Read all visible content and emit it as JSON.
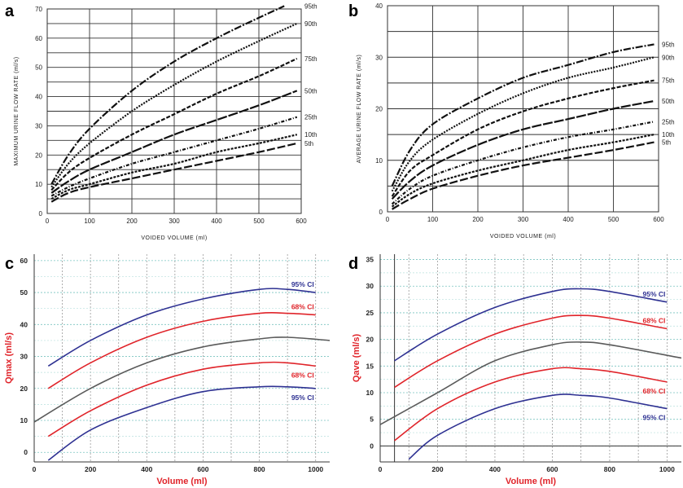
{
  "colors": {
    "blue": "#2e3192",
    "red": "#e0242a",
    "gray": "#5a5a5a",
    "dark": "#111111",
    "axis_label_red": "#e0242a"
  },
  "chart_data": [
    {
      "panel": "a",
      "type": "line",
      "xlabel": "VOIDED VOLUME (ml)",
      "ylabel": "MAXIMUM URINE FLOW RATE (ml/s)",
      "xlim": [
        0,
        600
      ],
      "ylim": [
        0,
        70
      ],
      "xticks": [
        0,
        100,
        200,
        300,
        400,
        500,
        600
      ],
      "yticks": [
        0,
        10,
        20,
        30,
        40,
        50,
        60,
        70
      ],
      "grid": true,
      "series": [
        {
          "name": "95th",
          "x": [
            10,
            50,
            100,
            200,
            300,
            400,
            500,
            560
          ],
          "y": [
            10,
            20,
            29,
            42,
            52,
            60,
            67,
            71
          ]
        },
        {
          "name": "90th",
          "x": [
            10,
            50,
            100,
            200,
            300,
            400,
            500,
            590
          ],
          "y": [
            9,
            17,
            24,
            35,
            44,
            52,
            59,
            65
          ]
        },
        {
          "name": "75th",
          "x": [
            10,
            50,
            100,
            200,
            300,
            400,
            500,
            590
          ],
          "y": [
            8,
            14,
            19,
            27,
            34,
            41,
            47,
            53
          ]
        },
        {
          "name": "50th",
          "x": [
            10,
            50,
            100,
            200,
            300,
            400,
            500,
            590
          ],
          "y": [
            7,
            11,
            15,
            21,
            27,
            32,
            37,
            42
          ]
        },
        {
          "name": "25th",
          "x": [
            10,
            50,
            100,
            200,
            300,
            400,
            500,
            590
          ],
          "y": [
            6,
            9,
            12,
            17,
            21,
            25,
            29,
            33
          ]
        },
        {
          "name": "10th",
          "x": [
            10,
            50,
            100,
            200,
            300,
            400,
            500,
            590
          ],
          "y": [
            5,
            8,
            10,
            14,
            17,
            21,
            24,
            27
          ]
        },
        {
          "name": "5th",
          "x": [
            10,
            50,
            100,
            200,
            300,
            400,
            500,
            590
          ],
          "y": [
            4,
            7,
            9,
            12,
            15,
            18,
            21,
            24
          ]
        }
      ]
    },
    {
      "panel": "b",
      "type": "line",
      "xlabel": "VOIDED VOLUME (ml)",
      "ylabel": "AVERAGE URINE FLOW RATE (ml/s)",
      "xlim": [
        0,
        600
      ],
      "ylim": [
        0,
        40
      ],
      "xticks": [
        0,
        100,
        200,
        300,
        400,
        500,
        600
      ],
      "yticks": [
        0,
        10,
        20,
        30,
        40
      ],
      "grid": true,
      "series": [
        {
          "name": "95th",
          "x": [
            10,
            50,
            100,
            200,
            300,
            400,
            500,
            590
          ],
          "y": [
            5,
            12,
            17,
            22,
            26,
            28.5,
            31,
            32.5
          ]
        },
        {
          "name": "90th",
          "x": [
            10,
            50,
            100,
            200,
            300,
            400,
            500,
            590
          ],
          "y": [
            4,
            10,
            14,
            19,
            23,
            26,
            28,
            30
          ]
        },
        {
          "name": "75th",
          "x": [
            10,
            50,
            100,
            200,
            300,
            400,
            500,
            590
          ],
          "y": [
            3,
            8,
            11,
            16,
            19.5,
            22,
            24,
            25.5
          ]
        },
        {
          "name": "50th",
          "x": [
            10,
            50,
            100,
            200,
            300,
            400,
            500,
            590
          ],
          "y": [
            2.5,
            6,
            9,
            13,
            16,
            18,
            20,
            21.5
          ]
        },
        {
          "name": "25th",
          "x": [
            10,
            50,
            100,
            200,
            300,
            400,
            500,
            590
          ],
          "y": [
            1.5,
            4.5,
            7,
            10,
            12.5,
            14.5,
            16,
            17.5
          ]
        },
        {
          "name": "10th",
          "x": [
            10,
            50,
            100,
            200,
            300,
            400,
            500,
            590
          ],
          "y": [
            1,
            3.5,
            5.5,
            8,
            10,
            12,
            13.5,
            15
          ]
        },
        {
          "name": "5th",
          "x": [
            10,
            50,
            100,
            200,
            300,
            400,
            500,
            590
          ],
          "y": [
            0.5,
            2.5,
            4.5,
            7,
            9,
            10.5,
            12,
            13.5
          ]
        }
      ]
    },
    {
      "panel": "c",
      "type": "line",
      "xlabel": "Volume (ml)",
      "ylabel": "Qmax (ml/s)",
      "xlim": [
        0,
        1050
      ],
      "ylim": [
        -3,
        62
      ],
      "xticks": [
        0,
        200,
        400,
        600,
        800,
        1000
      ],
      "yticks": [
        0,
        10,
        20,
        30,
        40,
        50,
        60
      ],
      "grid": true,
      "series": [
        {
          "name": "95% CI",
          "color": "blue",
          "x": [
            50,
            200,
            400,
            600,
            800,
            900,
            1000
          ],
          "y": [
            27,
            35,
            43,
            48,
            51,
            51,
            50
          ]
        },
        {
          "name": "68% CI",
          "color": "red",
          "x": [
            50,
            200,
            400,
            600,
            800,
            900,
            1000
          ],
          "y": [
            20,
            28,
            36,
            41,
            43.5,
            43.5,
            43
          ]
        },
        {
          "name": "",
          "color": "gray",
          "x": [
            0,
            200,
            400,
            600,
            800,
            900,
            1050
          ],
          "y": [
            9.5,
            20,
            28,
            33,
            35.5,
            36,
            35
          ]
        },
        {
          "name": "68% CI",
          "color": "red",
          "x": [
            50,
            200,
            400,
            600,
            800,
            900,
            1000
          ],
          "y": [
            5,
            13,
            21,
            26,
            28,
            28,
            27
          ]
        },
        {
          "name": "95% CI",
          "color": "blue",
          "x": [
            50,
            200,
            400,
            600,
            800,
            900,
            1000
          ],
          "y": [
            -2.5,
            7,
            14,
            19,
            20.5,
            20.5,
            20
          ]
        }
      ]
    },
    {
      "panel": "d",
      "type": "line",
      "xlabel": "Volume (ml)",
      "ylabel": "Qave (ml/s)",
      "xlim": [
        0,
        1050
      ],
      "ylim": [
        -3,
        36
      ],
      "xticks": [
        0,
        200,
        400,
        600,
        800,
        1000
      ],
      "yticks": [
        0,
        5,
        10,
        15,
        20,
        25,
        30,
        35
      ],
      "grid": true,
      "series": [
        {
          "name": "95% CI",
          "color": "blue",
          "x": [
            50,
            200,
            400,
            600,
            700,
            800,
            1000
          ],
          "y": [
            16,
            21,
            26,
            29,
            29.5,
            29,
            27
          ]
        },
        {
          "name": "68% CI",
          "color": "red",
          "x": [
            50,
            200,
            400,
            600,
            700,
            800,
            1000
          ],
          "y": [
            11,
            16,
            21,
            24,
            24.5,
            24,
            22
          ]
        },
        {
          "name": "",
          "color": "gray",
          "x": [
            0,
            200,
            400,
            600,
            700,
            800,
            1050
          ],
          "y": [
            4,
            10,
            16,
            19,
            19.5,
            19,
            16.5
          ]
        },
        {
          "name": "68% CI",
          "color": "red",
          "x": [
            50,
            200,
            400,
            600,
            700,
            800,
            1000
          ],
          "y": [
            1,
            7,
            12,
            14.5,
            14.5,
            14,
            12
          ]
        },
        {
          "name": "95% CI",
          "color": "blue",
          "x": [
            100,
            200,
            400,
            600,
            700,
            800,
            1000
          ],
          "y": [
            -2.5,
            2,
            7,
            9.5,
            9.5,
            9,
            7
          ]
        }
      ]
    }
  ]
}
